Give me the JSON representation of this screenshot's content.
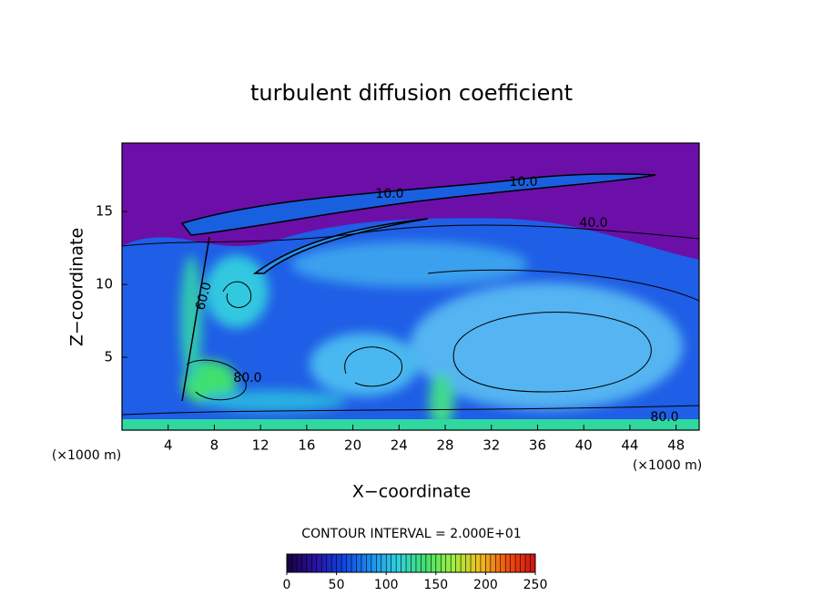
{
  "chart_data": {
    "type": "contour",
    "title": "turbulent diffusion coefficient",
    "x_label": "X−coordinate",
    "y_label": "Z−coordinate",
    "x_unit": "(×1000 m)",
    "y_unit": "(×1000 m)",
    "xlim": [
      0,
      50
    ],
    "xticks": [
      4,
      8,
      12,
      16,
      20,
      24,
      28,
      32,
      36,
      40,
      44,
      48
    ],
    "ylim": [
      0,
      19.7
    ],
    "yticks": [
      5,
      10,
      15
    ],
    "contour_note": "CONTOUR INTERVAL = 2.000E+01",
    "contour_labels": [
      "10.0",
      "10.0",
      "40.0",
      "60.0",
      "80.0",
      "80.0"
    ],
    "colorbar_lim": [
      0,
      250
    ],
    "colorbar_ticks": [
      0,
      50,
      100,
      150,
      200,
      250
    ],
    "colormap": [
      "#1a0040",
      "#2a10a0",
      "#1040e0",
      "#1a8cf0",
      "#30d0e0",
      "#40e070",
      "#a0f040",
      "#f0c020",
      "#f05010",
      "#d01010"
    ]
  }
}
